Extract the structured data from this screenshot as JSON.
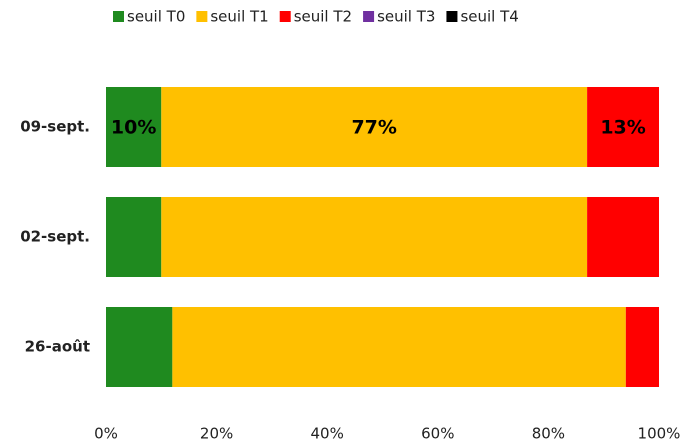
{
  "chart_data": {
    "type": "stacked_barh",
    "categories": [
      "09-sept.",
      "02-sept.",
      "26-août"
    ],
    "series": [
      {
        "name": "seuil T0",
        "color": "#1f8a1f",
        "values": [
          10,
          10,
          12
        ],
        "value_labels": [
          "10%",
          null,
          null
        ]
      },
      {
        "name": "seuil T1",
        "color": "#ffc000",
        "values": [
          77,
          77,
          82
        ],
        "value_labels": [
          "77%",
          null,
          null
        ]
      },
      {
        "name": "seuil T2",
        "color": "#ff0000",
        "values": [
          13,
          13,
          6
        ],
        "value_labels": [
          "13%",
          null,
          null
        ]
      },
      {
        "name": "seuil T3",
        "color": "#7030a0",
        "values": [
          0,
          0,
          0
        ]
      },
      {
        "name": "seuil T4",
        "color": "#000000",
        "values": [
          0,
          0,
          0
        ]
      }
    ],
    "xlim": [
      0,
      100
    ],
    "xticks": [
      {
        "value": 0,
        "label": "0%"
      },
      {
        "value": 20,
        "label": "20%"
      },
      {
        "value": 40,
        "label": "40%"
      },
      {
        "value": 60,
        "label": "60%"
      },
      {
        "value": 80,
        "label": "80%"
      },
      {
        "value": 100,
        "label": "100%"
      }
    ],
    "grid": false,
    "legend": "top"
  }
}
